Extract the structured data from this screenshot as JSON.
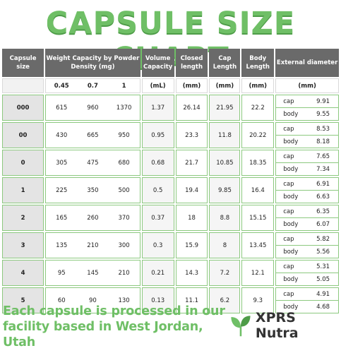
{
  "title": "CAPSULE SIZE CHART",
  "headers": {
    "size": "Capsule size",
    "weight": "Weight Capacity by Powder Density (mg)",
    "volume": "Volume Capacity",
    "closed": "Closed length",
    "cap": "Cap Length",
    "body": "Body Length",
    "external": "External diameter"
  },
  "units": {
    "density": [
      "0.45",
      "0.7",
      "1"
    ],
    "volume": "(mL)",
    "closed": "(mm)",
    "cap": "(mm)",
    "body": "(mm)",
    "external": "(mm)"
  },
  "sublabels": {
    "cap": "cap",
    "body": "body"
  },
  "rows": [
    {
      "size": "000",
      "w": [
        "615",
        "960",
        "1370"
      ],
      "volume": "1.37",
      "closed": "26.14",
      "cap_len": "21.95",
      "body_len": "22.2",
      "d_cap": "9.91",
      "d_body": "9.55"
    },
    {
      "size": "00",
      "w": [
        "430",
        "665",
        "950"
      ],
      "volume": "0.95",
      "closed": "23.3",
      "cap_len": "11.8",
      "body_len": "20.22",
      "d_cap": "8.53",
      "d_body": "8.18"
    },
    {
      "size": "0",
      "w": [
        "305",
        "475",
        "680"
      ],
      "volume": "0.68",
      "closed": "21.7",
      "cap_len": "10.85",
      "body_len": "18.35",
      "d_cap": "7.65",
      "d_body": "7.34"
    },
    {
      "size": "1",
      "w": [
        "225",
        "350",
        "500"
      ],
      "volume": "0.5",
      "closed": "19.4",
      "cap_len": "9.85",
      "body_len": "16.4",
      "d_cap": "6.91",
      "d_body": "6.63"
    },
    {
      "size": "2",
      "w": [
        "165",
        "260",
        "370"
      ],
      "volume": "0.37",
      "closed": "18",
      "cap_len": "8.8",
      "body_len": "15.15",
      "d_cap": "6.35",
      "d_body": "6.07"
    },
    {
      "size": "3",
      "w": [
        "135",
        "210",
        "300"
      ],
      "volume": "0.3",
      "closed": "15.9",
      "cap_len": "8",
      "body_len": "13.45",
      "d_cap": "5.82",
      "d_body": "5.56"
    },
    {
      "size": "4",
      "w": [
        "95",
        "145",
        "210"
      ],
      "volume": "0.21",
      "closed": "14.3",
      "cap_len": "7.2",
      "body_len": "12.1",
      "d_cap": "5.31",
      "d_body": "5.05"
    },
    {
      "size": "5",
      "w": [
        "60",
        "90",
        "130"
      ],
      "volume": "0.13",
      "closed": "11.1",
      "cap_len": "6.2",
      "body_len": "9.3",
      "d_cap": "4.91",
      "d_body": "4.68"
    }
  ],
  "footer": {
    "line1": "Each capsule is processed in our",
    "line2": "facility based in West Jordan, Utah"
  },
  "brand": "XPRS Nutra",
  "colors": {
    "accent": "#6fbf66",
    "header": "#6a6a6a",
    "border": "#8cc97f"
  },
  "icons": {
    "logo": "leaf-sprout-icon"
  }
}
